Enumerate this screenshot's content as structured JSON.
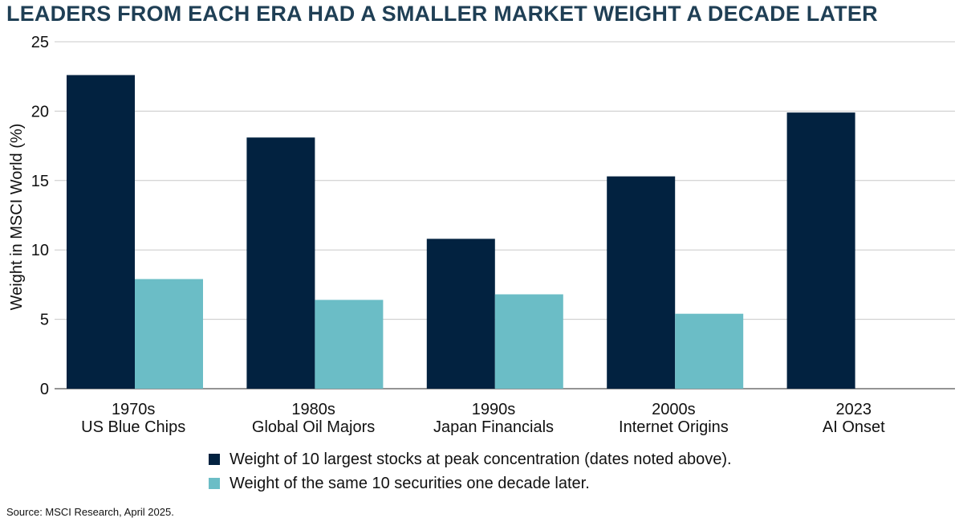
{
  "title": "LEADERS FROM EACH ERA HAD A SMALLER MARKET WEIGHT A DECADE LATER",
  "source": "Source: MSCI Research, April 2025.",
  "colors": {
    "peak": "#022240",
    "later": "#6bbdc6",
    "title": "#1f3f55"
  },
  "chart_data": {
    "type": "bar",
    "title": "LEADERS FROM EACH ERA HAD A SMALLER MARKET WEIGHT A DECADE LATER",
    "xlabel": "",
    "ylabel": "Weight in MSCI World (%)",
    "ylim": [
      0,
      25
    ],
    "yticks": [
      0,
      5,
      10,
      15,
      20,
      25
    ],
    "grid": true,
    "legend_position": "bottom",
    "categories": [
      {
        "line1": "1970s",
        "line2": "US Blue Chips"
      },
      {
        "line1": "1980s",
        "line2": "Global Oil Majors"
      },
      {
        "line1": "1990s",
        "line2": "Japan Financials"
      },
      {
        "line1": "2000s",
        "line2": "Internet Origins"
      },
      {
        "line1": "2023",
        "line2": "AI Onset"
      }
    ],
    "series": [
      {
        "name": "Weight of 10 largest stocks at peak concentration (dates noted above).",
        "values": [
          22.6,
          18.1,
          10.8,
          15.3,
          19.9
        ]
      },
      {
        "name": "Weight of the same 10 securities one decade later.",
        "values": [
          7.9,
          6.4,
          6.8,
          5.4,
          null
        ]
      }
    ]
  }
}
